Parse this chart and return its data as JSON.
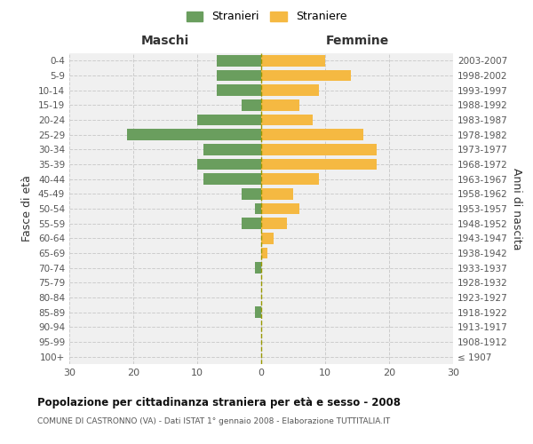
{
  "age_groups": [
    "100+",
    "95-99",
    "90-94",
    "85-89",
    "80-84",
    "75-79",
    "70-74",
    "65-69",
    "60-64",
    "55-59",
    "50-54",
    "45-49",
    "40-44",
    "35-39",
    "30-34",
    "25-29",
    "20-24",
    "15-19",
    "10-14",
    "5-9",
    "0-4"
  ],
  "birth_years": [
    "≤ 1907",
    "1908-1912",
    "1913-1917",
    "1918-1922",
    "1923-1927",
    "1928-1932",
    "1933-1937",
    "1938-1942",
    "1943-1947",
    "1948-1952",
    "1953-1957",
    "1958-1962",
    "1963-1967",
    "1968-1972",
    "1973-1977",
    "1978-1982",
    "1983-1987",
    "1988-1992",
    "1993-1997",
    "1998-2002",
    "2003-2007"
  ],
  "males": [
    0,
    0,
    0,
    1,
    0,
    0,
    1,
    0,
    0,
    3,
    1,
    3,
    9,
    10,
    9,
    21,
    10,
    3,
    7,
    7,
    7
  ],
  "females": [
    0,
    0,
    0,
    0,
    0,
    0,
    0,
    1,
    2,
    4,
    6,
    5,
    9,
    18,
    18,
    16,
    8,
    6,
    9,
    14,
    10
  ],
  "male_color": "#6a9e5e",
  "female_color": "#f5b942",
  "bg_color": "#f0f0f0",
  "grid_color": "#cccccc",
  "xlim": 30,
  "title": "Popolazione per cittadinanza straniera per età e sesso - 2008",
  "subtitle": "COMUNE DI CASTRONNO (VA) - Dati ISTAT 1° gennaio 2008 - Elaborazione TUTTITALIA.IT",
  "left_label": "Maschi",
  "right_label": "Femmine",
  "ylabel": "Fasce di età",
  "right_ylabel": "Anni di nascita",
  "legend_male": "Stranieri",
  "legend_female": "Straniere"
}
